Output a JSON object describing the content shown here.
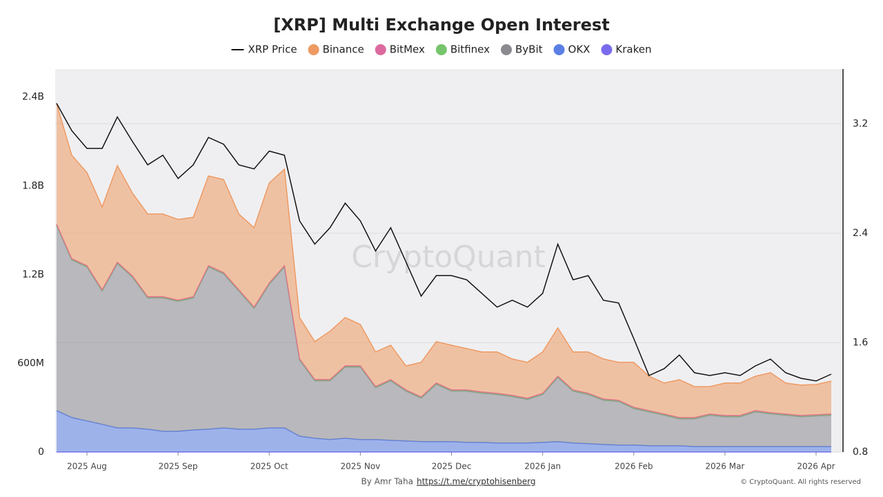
{
  "chart_data": {
    "type": "stacked-area-line",
    "title": "[XRP] Multi Exchange Open Interest",
    "watermark": "CryptoQuant",
    "credit": "By Amr Taha",
    "credit_link": "https://t.me/cryptohisenberg",
    "copyright": "© CryptoQuant. All rights reserved",
    "categories": [
      null,
      null,
      "2025 Aug",
      null,
      null,
      null,
      null,
      null,
      "2025 Sep",
      null,
      null,
      null,
      null,
      null,
      "2025 Oct",
      null,
      null,
      null,
      null,
      null,
      "2025 Nov",
      null,
      null,
      null,
      null,
      null,
      "2025 Dec",
      null,
      null,
      null,
      null,
      null,
      "2026 Jan",
      null,
      null,
      null,
      null,
      null,
      "2026 Feb",
      null,
      null,
      null,
      null,
      null,
      "2026 Mar",
      null,
      null,
      null,
      null,
      null,
      "2026 Apr",
      null
    ],
    "ylim": [
      0,
      2590
    ],
    "yticks": [
      0,
      {
        "value": 600,
        "label": "600M"
      },
      {
        "value": 1200,
        "label": "1.2B"
      },
      {
        "value": 1800,
        "label": "1.8B"
      },
      {
        "value": 2400,
        "label": "2.4B"
      }
    ],
    "y2lim": [
      0.8,
      3.6
    ],
    "y2ticks": [
      0.8,
      1.6,
      2.4,
      3.2
    ],
    "grid": true,
    "series": [
      {
        "name": "XRP Price",
        "color": "#111111",
        "axis": "y2",
        "kind": "line",
        "values": [
          3.35,
          3.15,
          3.02,
          3.02,
          3.25,
          3.07,
          2.9,
          2.97,
          2.8,
          2.9,
          3.1,
          3.05,
          2.9,
          2.87,
          3.0,
          2.97,
          2.49,
          2.32,
          2.44,
          2.62,
          2.49,
          2.27,
          2.44,
          2.19,
          1.94,
          2.09,
          2.09,
          2.06,
          1.96,
          1.86,
          1.91,
          1.86,
          1.96,
          2.32,
          2.06,
          2.09,
          1.91,
          1.89,
          1.63,
          1.36,
          1.41,
          1.51,
          1.38,
          1.36,
          1.38,
          1.36,
          1.43,
          1.48,
          1.38,
          1.34,
          1.32,
          1.37
        ]
      },
      {
        "name": "Binance",
        "color": "#ee9a62",
        "kind": "area",
        "values": [
          816,
          699,
          629,
          559,
          653,
          559,
          559,
          559,
          545,
          536,
          606,
          629,
          512,
          536,
          676,
          652,
          279,
          256,
          326,
          326,
          279,
          233,
          232,
          162,
          233,
          279,
          302,
          279,
          270,
          279,
          246,
          242,
          279,
          326,
          256,
          279,
          270,
          256,
          303,
          232,
          209,
          256,
          209,
          185,
          219,
          219,
          232,
          270,
          209,
          205,
          204,
          222
        ]
      },
      {
        "name": "BitMex",
        "color": "#dc6a9f",
        "kind": "area",
        "values": [
          5,
          5,
          5,
          5,
          5,
          5,
          5,
          5,
          5,
          5,
          5,
          5,
          5,
          5,
          5,
          5,
          5,
          5,
          5,
          5,
          5,
          5,
          5,
          5,
          5,
          5,
          5,
          5,
          5,
          5,
          5,
          5,
          5,
          5,
          5,
          5,
          5,
          5,
          5,
          5,
          5,
          5,
          5,
          5,
          5,
          5,
          5,
          5,
          5,
          5,
          5,
          5
        ]
      },
      {
        "name": "Bitfinex",
        "color": "#76c46c",
        "kind": "area",
        "values": [
          3,
          3,
          3,
          3,
          3,
          3,
          3,
          3,
          3,
          3,
          3,
          3,
          3,
          3,
          3,
          3,
          3,
          3,
          3,
          3,
          3,
          3,
          3,
          3,
          3,
          3,
          3,
          3,
          3,
          3,
          3,
          3,
          3,
          3,
          3,
          3,
          3,
          3,
          3,
          3,
          3,
          3,
          3,
          3,
          3,
          3,
          3,
          3,
          3,
          3,
          3,
          3
        ]
      },
      {
        "name": "ByBit",
        "color": "#8b8a91",
        "kind": "area",
        "values": [
          1252,
          1066,
          1042,
          902,
          1112,
          1019,
          888,
          902,
          879,
          893,
          1098,
          1042,
          935,
          818,
          972,
          1089,
          515,
          389,
          398,
          482,
          491,
          351,
          403,
          337,
          295,
          389,
          342,
          347,
          333,
          328,
          314,
          295,
          324,
          435,
          351,
          333,
          300,
          295,
          248,
          230,
          207,
          183,
          188,
          212,
          202,
          202,
          235,
          221,
          212,
          202,
          207,
          212
        ]
      },
      {
        "name": "OKX",
        "color": "#5b7fe4",
        "kind": "area",
        "values": [
          280,
          233,
          210,
          187,
          163,
          163,
          154,
          140,
          140,
          149,
          154,
          163,
          154,
          154,
          163,
          163,
          107,
          93,
          84,
          93,
          84,
          84,
          79,
          75,
          70,
          70,
          70,
          65,
          65,
          61,
          61,
          61,
          65,
          70,
          61,
          56,
          51,
          47,
          47,
          42,
          42,
          42,
          37,
          37,
          37,
          37,
          37,
          37,
          37,
          37,
          37,
          37
        ]
      },
      {
        "name": "Kraken",
        "color": "#7a6bee",
        "kind": "area",
        "values": [
          1,
          1,
          1,
          1,
          1,
          1,
          1,
          1,
          1,
          1,
          1,
          1,
          1,
          1,
          1,
          1,
          1,
          1,
          1,
          1,
          1,
          1,
          1,
          1,
          1,
          1,
          1,
          1,
          1,
          1,
          1,
          1,
          1,
          1,
          1,
          1,
          1,
          1,
          1,
          1,
          1,
          1,
          1,
          1,
          1,
          1,
          1,
          1,
          1,
          1,
          1,
          1
        ]
      }
    ]
  }
}
